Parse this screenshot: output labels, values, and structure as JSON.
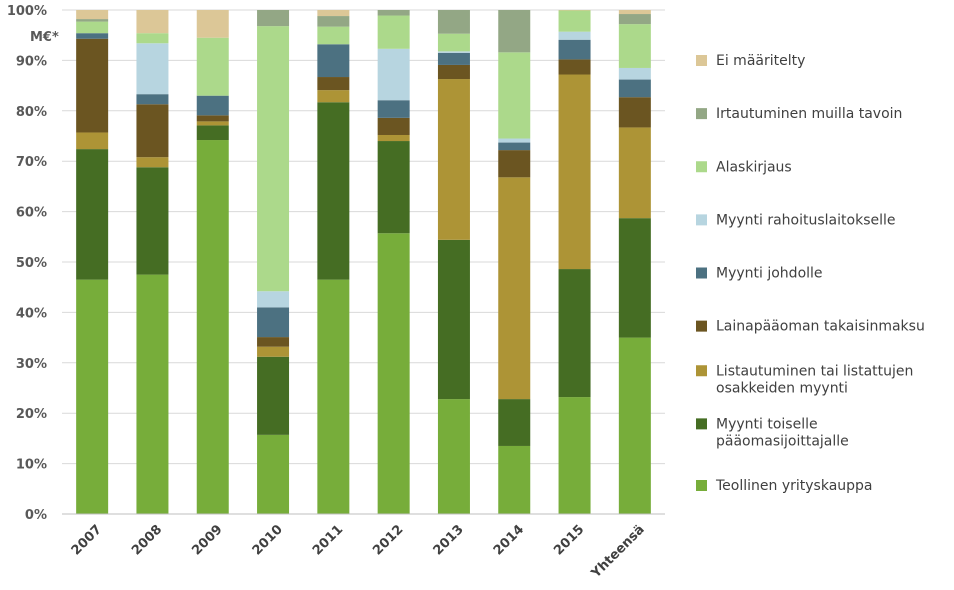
{
  "chart_data": {
    "type": "bar",
    "stacked": true,
    "unit_label": "M€*",
    "ylim": [
      0,
      100
    ],
    "y_ticks": [
      "0%",
      "10%",
      "20%",
      "30%",
      "40%",
      "50%",
      "60%",
      "70%",
      "80%",
      "90%",
      "100%"
    ],
    "grid": true,
    "legend_position": "right",
    "categories": [
      "2007",
      "2008",
      "2009",
      "2010",
      "2011",
      "2012",
      "2013",
      "2014",
      "2015",
      "Yhteensä"
    ],
    "series": [
      {
        "name": "Teollinen yrityskauppa",
        "color": "#77ad3a",
        "values": [
          46.5,
          47.5,
          74.2,
          15.7,
          46.5,
          55.7,
          22.8,
          13.5,
          23.2,
          35.0
        ]
      },
      {
        "name": "Myynti toiselle pääomasijoittajalle",
        "color": "#456d23",
        "values": [
          25.9,
          21.3,
          2.9,
          15.5,
          35.2,
          18.3,
          31.6,
          9.3,
          25.4,
          23.7
        ]
      },
      {
        "name": "Listautuminen tai listattujen osakkeiden myynti",
        "color": "#ad9436",
        "values": [
          3.3,
          2.0,
          0.8,
          2.0,
          2.4,
          1.2,
          31.9,
          44.0,
          38.6,
          18.0
        ]
      },
      {
        "name": "Lainapääoman takaisinmaksu",
        "color": "#6b5521",
        "values": [
          18.6,
          10.5,
          1.2,
          1.9,
          2.6,
          3.4,
          2.8,
          5.4,
          3.0,
          6.0
        ]
      },
      {
        "name": "Myynti johdolle",
        "color": "#4c7181",
        "values": [
          1.1,
          2.0,
          3.9,
          5.9,
          6.5,
          3.5,
          2.4,
          1.5,
          3.9,
          3.5
        ]
      },
      {
        "name": "Myynti rahoituslaitokselle",
        "color": "#b7d5e0",
        "values": [
          0.0,
          10.1,
          0.0,
          3.2,
          0.0,
          10.2,
          0.3,
          0.8,
          1.6,
          2.3
        ]
      },
      {
        "name": "Alaskirjaus",
        "color": "#acd98b",
        "values": [
          2.3,
          2.0,
          11.5,
          52.6,
          3.5,
          6.6,
          3.5,
          17.1,
          4.2,
          8.7
        ]
      },
      {
        "name": "Irtautuminen muilla tavoin",
        "color": "#93a785",
        "values": [
          0.5,
          0.0,
          0.0,
          3.2,
          2.1,
          1.1,
          4.7,
          8.4,
          0.0,
          2.0
        ]
      },
      {
        "name": "Ei määritelty",
        "color": "#dcc797",
        "values": [
          1.8,
          4.6,
          5.5,
          0.0,
          1.2,
          0.0,
          0.0,
          0.0,
          0.1,
          0.8
        ]
      }
    ]
  }
}
